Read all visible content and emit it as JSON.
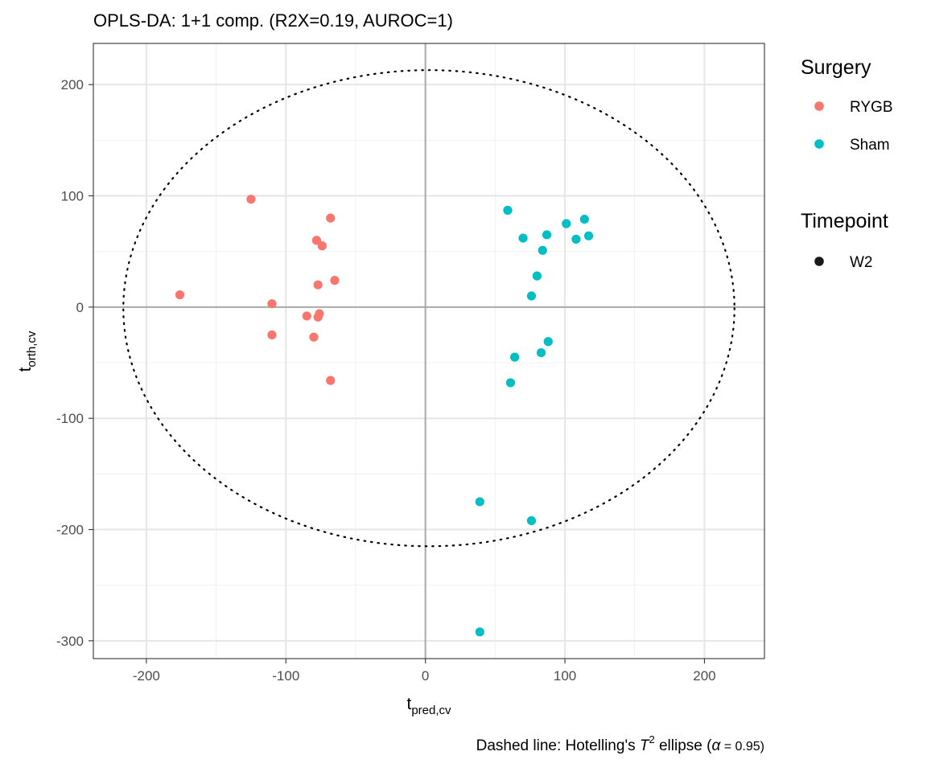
{
  "chart_data": {
    "type": "scatter",
    "title": "OPLS-DA: 1+1 comp. (R2X=0.19, AUROC=1)",
    "xlabel": {
      "main": "t",
      "sub": "pred,cv"
    },
    "ylabel": {
      "main": "t",
      "sub": "orth,cv"
    },
    "xlim": [
      -238,
      243
    ],
    "ylim": [
      -316,
      237
    ],
    "x_ticks": [
      -200,
      -100,
      0,
      100,
      200
    ],
    "y_ticks": [
      -300,
      -200,
      -100,
      0,
      100,
      200
    ],
    "x_tick_labels": [
      "-200",
      "-100",
      "0",
      "100",
      "200"
    ],
    "y_tick_labels": [
      "-300",
      "-200",
      "-100",
      "0",
      "100",
      "200"
    ],
    "grid": true,
    "legend_position": "right",
    "legends": [
      {
        "title": "Surgery",
        "entries": [
          {
            "label": "RYGB",
            "color": "#F8766D"
          },
          {
            "label": "Sham",
            "color": "#00BFC4"
          }
        ]
      },
      {
        "title": "Timepoint",
        "entries": [
          {
            "label": "W2",
            "color": "#1a1a1a"
          }
        ]
      }
    ],
    "ellipse": {
      "center": [
        2.5,
        -1
      ],
      "rx": 219,
      "ry": 214
    },
    "caption": {
      "prefix": "Dashed line: Hotelling's ",
      "symbol": "T",
      "sup": "2",
      "middle": " ellipse (",
      "alpha": "α",
      "suffix": " = 0.95)"
    },
    "series": [
      {
        "name": "RYGB",
        "color": "#F8766D",
        "x": [
          -125,
          -176,
          -68,
          -78,
          -74,
          -77,
          -65,
          -110,
          -85,
          -76,
          -77,
          -110,
          -80,
          -68
        ],
        "y": [
          97,
          11,
          80,
          60,
          55,
          20,
          24,
          3,
          -8,
          -6,
          -9,
          -25,
          -27,
          -66
        ]
      },
      {
        "name": "Sham",
        "color": "#00BFC4",
        "x": [
          59,
          70,
          87,
          84,
          101,
          114,
          108,
          117,
          80,
          76,
          88,
          83,
          64,
          61,
          39,
          76,
          39
        ],
        "y": [
          87,
          62,
          65,
          51,
          75,
          79,
          61,
          64,
          28,
          10,
          -31,
          -41,
          -45,
          -68,
          -175,
          -192,
          -292
        ]
      }
    ]
  }
}
